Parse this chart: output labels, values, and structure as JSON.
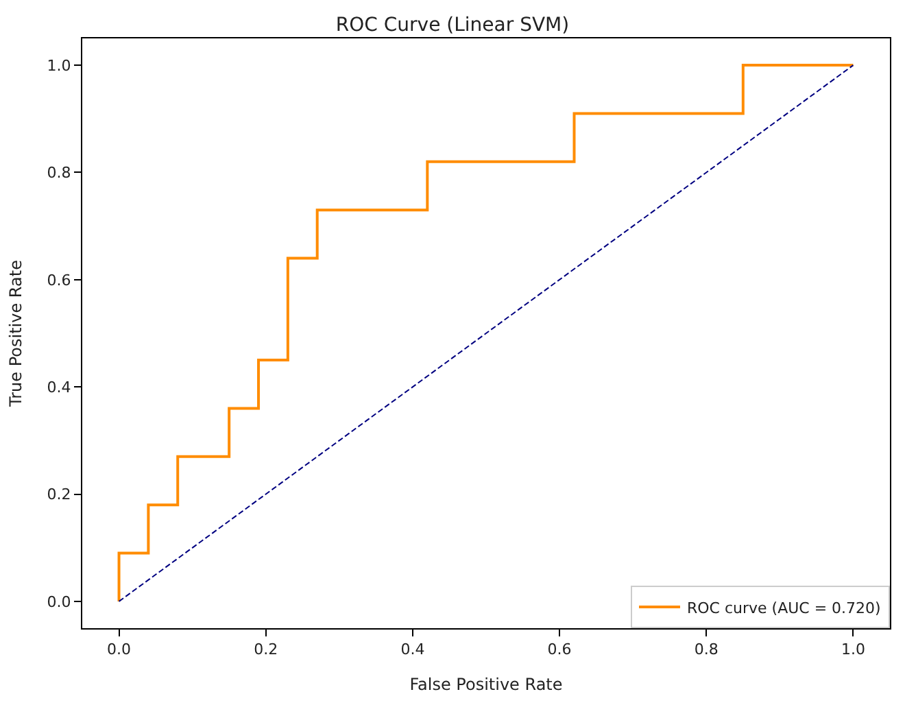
{
  "chart_data": {
    "type": "line",
    "title": "ROC Curve (Linear SVM)",
    "xlabel": "False Positive Rate",
    "ylabel": "True Positive Rate",
    "xlim": [
      -0.05,
      1.05
    ],
    "ylim": [
      -0.05,
      1.05
    ],
    "xticks": [
      {
        "value": 0,
        "label": "0.0"
      },
      {
        "value": 0.2,
        "label": "0.2"
      },
      {
        "value": 0.4,
        "label": "0.4"
      },
      {
        "value": 0.6,
        "label": "0.6"
      },
      {
        "value": 0.8,
        "label": "0.8"
      },
      {
        "value": 1,
        "label": "1.0"
      }
    ],
    "yticks": [
      {
        "value": 0,
        "label": "0.0"
      },
      {
        "value": 0.2,
        "label": "0.2"
      },
      {
        "value": 0.4,
        "label": "0.4"
      },
      {
        "value": 0.6,
        "label": "0.6"
      },
      {
        "value": 0.8,
        "label": "0.8"
      },
      {
        "value": 1,
        "label": "1.0"
      }
    ],
    "legend": "bottom right",
    "marker": "none",
    "series": [
      {
        "name": "ROC curve (AUC = 0.720)",
        "color": "#ff8c00",
        "line_style": "solid",
        "x": [
          0,
          0,
          0.04,
          0.04,
          0.08,
          0.08,
          0.15,
          0.15,
          0.19,
          0.19,
          0.23,
          0.23,
          0.27,
          0.27,
          0.42,
          0.42,
          0.62,
          0.62,
          0.85,
          0.85,
          1
        ],
        "values": [
          0,
          0.09,
          0.09,
          0.18,
          0.18,
          0.27,
          0.27,
          0.36,
          0.36,
          0.45,
          0.45,
          0.64,
          0.64,
          0.73,
          0.73,
          0.82,
          0.82,
          0.91,
          0.91,
          1,
          1
        ]
      },
      {
        "color": "#000080",
        "line_style": "dashed",
        "x": [
          0,
          1
        ],
        "values": [
          0,
          1
        ]
      }
    ]
  }
}
